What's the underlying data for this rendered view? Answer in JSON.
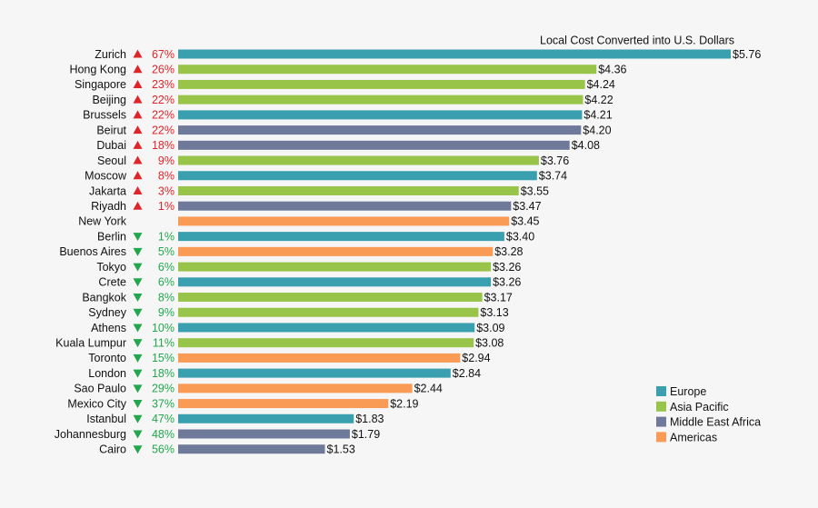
{
  "chart_data": {
    "type": "bar",
    "orientation": "horizontal",
    "title": "Local Cost Converted into U.S. Dollars",
    "legend_position": "bottom-right",
    "grid": false,
    "xlim": [
      0,
      5.76
    ],
    "colors": {
      "Europe": "#3a9fae",
      "Asia Pacific": "#98c449",
      "Middle East Africa": "#6f7a9a",
      "Americas": "#f99a55",
      "up": "#e0252a",
      "down": "#22a74e"
    },
    "legend": [
      {
        "name": "Europe",
        "color": "#3a9fae"
      },
      {
        "name": "Asia Pacific",
        "color": "#98c449"
      },
      {
        "name": "Middle East Africa",
        "color": "#6f7a9a"
      },
      {
        "name": "Americas",
        "color": "#f99a55"
      }
    ],
    "rows": [
      {
        "city": "Zurich",
        "region": "Europe",
        "value": 5.76,
        "label": "$5.76",
        "dir": "up",
        "pct": "67%"
      },
      {
        "city": "Hong Kong",
        "region": "Asia Pacific",
        "value": 4.36,
        "label": "$4.36",
        "dir": "up",
        "pct": "26%"
      },
      {
        "city": "Singapore",
        "region": "Asia Pacific",
        "value": 4.24,
        "label": "$4.24",
        "dir": "up",
        "pct": "23%"
      },
      {
        "city": "Beijing",
        "region": "Asia Pacific",
        "value": 4.22,
        "label": "$4.22",
        "dir": "up",
        "pct": "22%"
      },
      {
        "city": "Brussels",
        "region": "Europe",
        "value": 4.21,
        "label": "$4.21",
        "dir": "up",
        "pct": "22%"
      },
      {
        "city": "Beirut",
        "region": "Middle East Africa",
        "value": 4.2,
        "label": "$4.20",
        "dir": "up",
        "pct": "22%"
      },
      {
        "city": "Dubai",
        "region": "Middle East Africa",
        "value": 4.08,
        "label": "$4.08",
        "dir": "up",
        "pct": "18%"
      },
      {
        "city": "Seoul",
        "region": "Asia Pacific",
        "value": 3.76,
        "label": "$3.76",
        "dir": "up",
        "pct": "9%"
      },
      {
        "city": "Moscow",
        "region": "Europe",
        "value": 3.74,
        "label": "$3.74",
        "dir": "up",
        "pct": "8%"
      },
      {
        "city": "Jakarta",
        "region": "Asia Pacific",
        "value": 3.55,
        "label": "$3.55",
        "dir": "up",
        "pct": "3%"
      },
      {
        "city": "Riyadh",
        "region": "Middle East Africa",
        "value": 3.47,
        "label": "$3.47",
        "dir": "up",
        "pct": "1%"
      },
      {
        "city": "New York",
        "region": "Americas",
        "value": 3.45,
        "label": "$3.45",
        "dir": "",
        "pct": ""
      },
      {
        "city": "Berlin",
        "region": "Europe",
        "value": 3.4,
        "label": "$3.40",
        "dir": "down",
        "pct": "1%"
      },
      {
        "city": "Buenos Aires",
        "region": "Americas",
        "value": 3.28,
        "label": "$3.28",
        "dir": "down",
        "pct": "5%"
      },
      {
        "city": "Tokyo",
        "region": "Asia Pacific",
        "value": 3.26,
        "label": "$3.26",
        "dir": "down",
        "pct": "6%"
      },
      {
        "city": "Crete",
        "region": "Europe",
        "value": 3.26,
        "label": "$3.26",
        "dir": "down",
        "pct": "6%"
      },
      {
        "city": "Bangkok",
        "region": "Asia Pacific",
        "value": 3.17,
        "label": "$3.17",
        "dir": "down",
        "pct": "8%"
      },
      {
        "city": "Sydney",
        "region": "Asia Pacific",
        "value": 3.13,
        "label": "$3.13",
        "dir": "down",
        "pct": "9%"
      },
      {
        "city": "Athens",
        "region": "Europe",
        "value": 3.09,
        "label": "$3.09",
        "dir": "down",
        "pct": "10%"
      },
      {
        "city": "Kuala Lumpur",
        "region": "Asia Pacific",
        "value": 3.08,
        "label": "$3.08",
        "dir": "down",
        "pct": "11%"
      },
      {
        "city": "Toronto",
        "region": "Americas",
        "value": 2.94,
        "label": "$2.94",
        "dir": "down",
        "pct": "15%"
      },
      {
        "city": "London",
        "region": "Europe",
        "value": 2.84,
        "label": "$2.84",
        "dir": "down",
        "pct": "18%"
      },
      {
        "city": "Sao Paulo",
        "region": "Americas",
        "value": 2.44,
        "label": "$2.44",
        "dir": "down",
        "pct": "29%"
      },
      {
        "city": "Mexico City",
        "region": "Americas",
        "value": 2.19,
        "label": "$2.19",
        "dir": "down",
        "pct": "37%"
      },
      {
        "city": "Istanbul",
        "region": "Europe",
        "value": 1.83,
        "label": "$1.83",
        "dir": "down",
        "pct": "47%"
      },
      {
        "city": "Johannesburg",
        "region": "Middle East Africa",
        "value": 1.79,
        "label": "$1.79",
        "dir": "down",
        "pct": "48%"
      },
      {
        "city": "Cairo",
        "region": "Middle East Africa",
        "value": 1.53,
        "label": "$1.53",
        "dir": "down",
        "pct": "56%"
      }
    ]
  }
}
